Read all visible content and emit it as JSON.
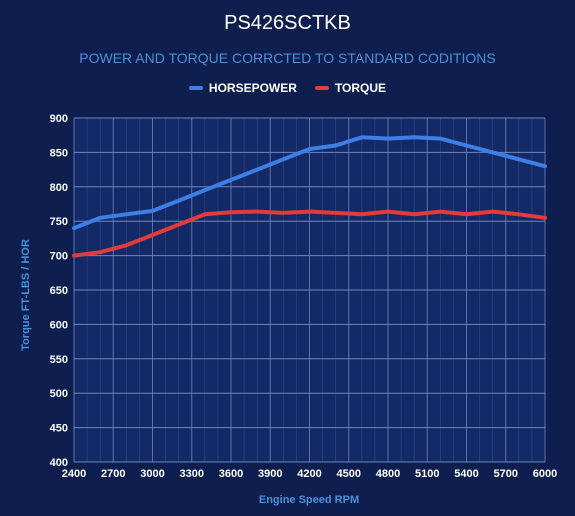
{
  "chart_data": {
    "type": "line",
    "title": "PS426SCTKB",
    "subtitle": "POWER AND TORQUE CORRCTED TO STANDARD CODITIONS",
    "xlabel": "Engine Speed RPM",
    "ylabel": "Torque FT-LBS / HOR",
    "xlim": [
      2400,
      6000
    ],
    "ylim": [
      400,
      900
    ],
    "x_ticks": [
      2400,
      2700,
      3000,
      3300,
      3600,
      3900,
      4200,
      4500,
      4800,
      5100,
      5400,
      5700,
      6000
    ],
    "y_ticks": [
      400,
      450,
      500,
      550,
      600,
      650,
      700,
      750,
      800,
      850,
      900
    ],
    "grid": true,
    "legend_position": "top-center",
    "series": [
      {
        "name": "HORSEPOWER",
        "color": "#3d7fe6",
        "x": [
          2400,
          2600,
          2800,
          3000,
          3200,
          3400,
          3600,
          3800,
          4000,
          4200,
          4400,
          4600,
          4800,
          5000,
          5200,
          5400,
          5600,
          5800,
          6000
        ],
        "y": [
          740,
          755,
          760,
          765,
          780,
          795,
          810,
          825,
          840,
          855,
          860,
          872,
          870,
          872,
          870,
          860,
          850,
          840,
          830
        ]
      },
      {
        "name": "TORQUE",
        "color": "#e23b3b",
        "x": [
          2400,
          2600,
          2800,
          3000,
          3200,
          3400,
          3600,
          3800,
          4000,
          4200,
          4400,
          4600,
          4800,
          5000,
          5200,
          5400,
          5600,
          5800,
          6000
        ],
        "y": [
          700,
          705,
          715,
          730,
          745,
          760,
          763,
          764,
          762,
          764,
          762,
          760,
          764,
          760,
          764,
          760,
          764,
          760,
          755
        ]
      }
    ]
  }
}
